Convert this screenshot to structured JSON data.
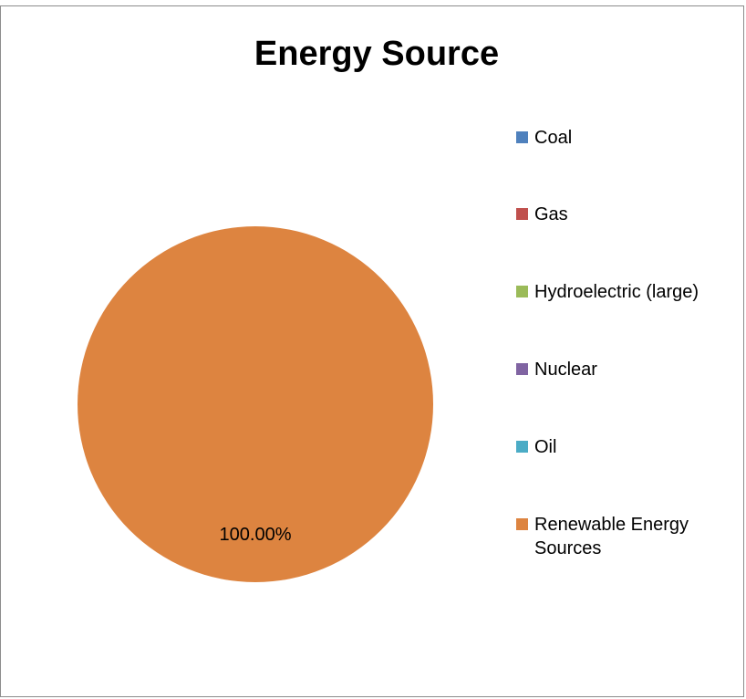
{
  "chart_data": {
    "type": "pie",
    "title": "Energy Source",
    "categories": [
      "Coal",
      "Gas",
      "Hydroelectric (large)",
      "Nuclear",
      "Oil",
      "Renewable Energy Sources"
    ],
    "values": [
      0,
      0,
      0,
      0,
      0,
      100
    ],
    "data_labels": [
      "",
      "",
      "",
      "",
      "",
      "100.00%"
    ],
    "colors": [
      "#4f81bd",
      "#c0504d",
      "#9bbb59",
      "#8064a2",
      "#4bacc6",
      "#dd8440"
    ],
    "legend": {
      "placement": "right",
      "entries": [
        "Coal",
        "Gas",
        "Hydroelectric (large)",
        "Nuclear",
        "Oil",
        "Renewable Energy Sources"
      ]
    }
  }
}
